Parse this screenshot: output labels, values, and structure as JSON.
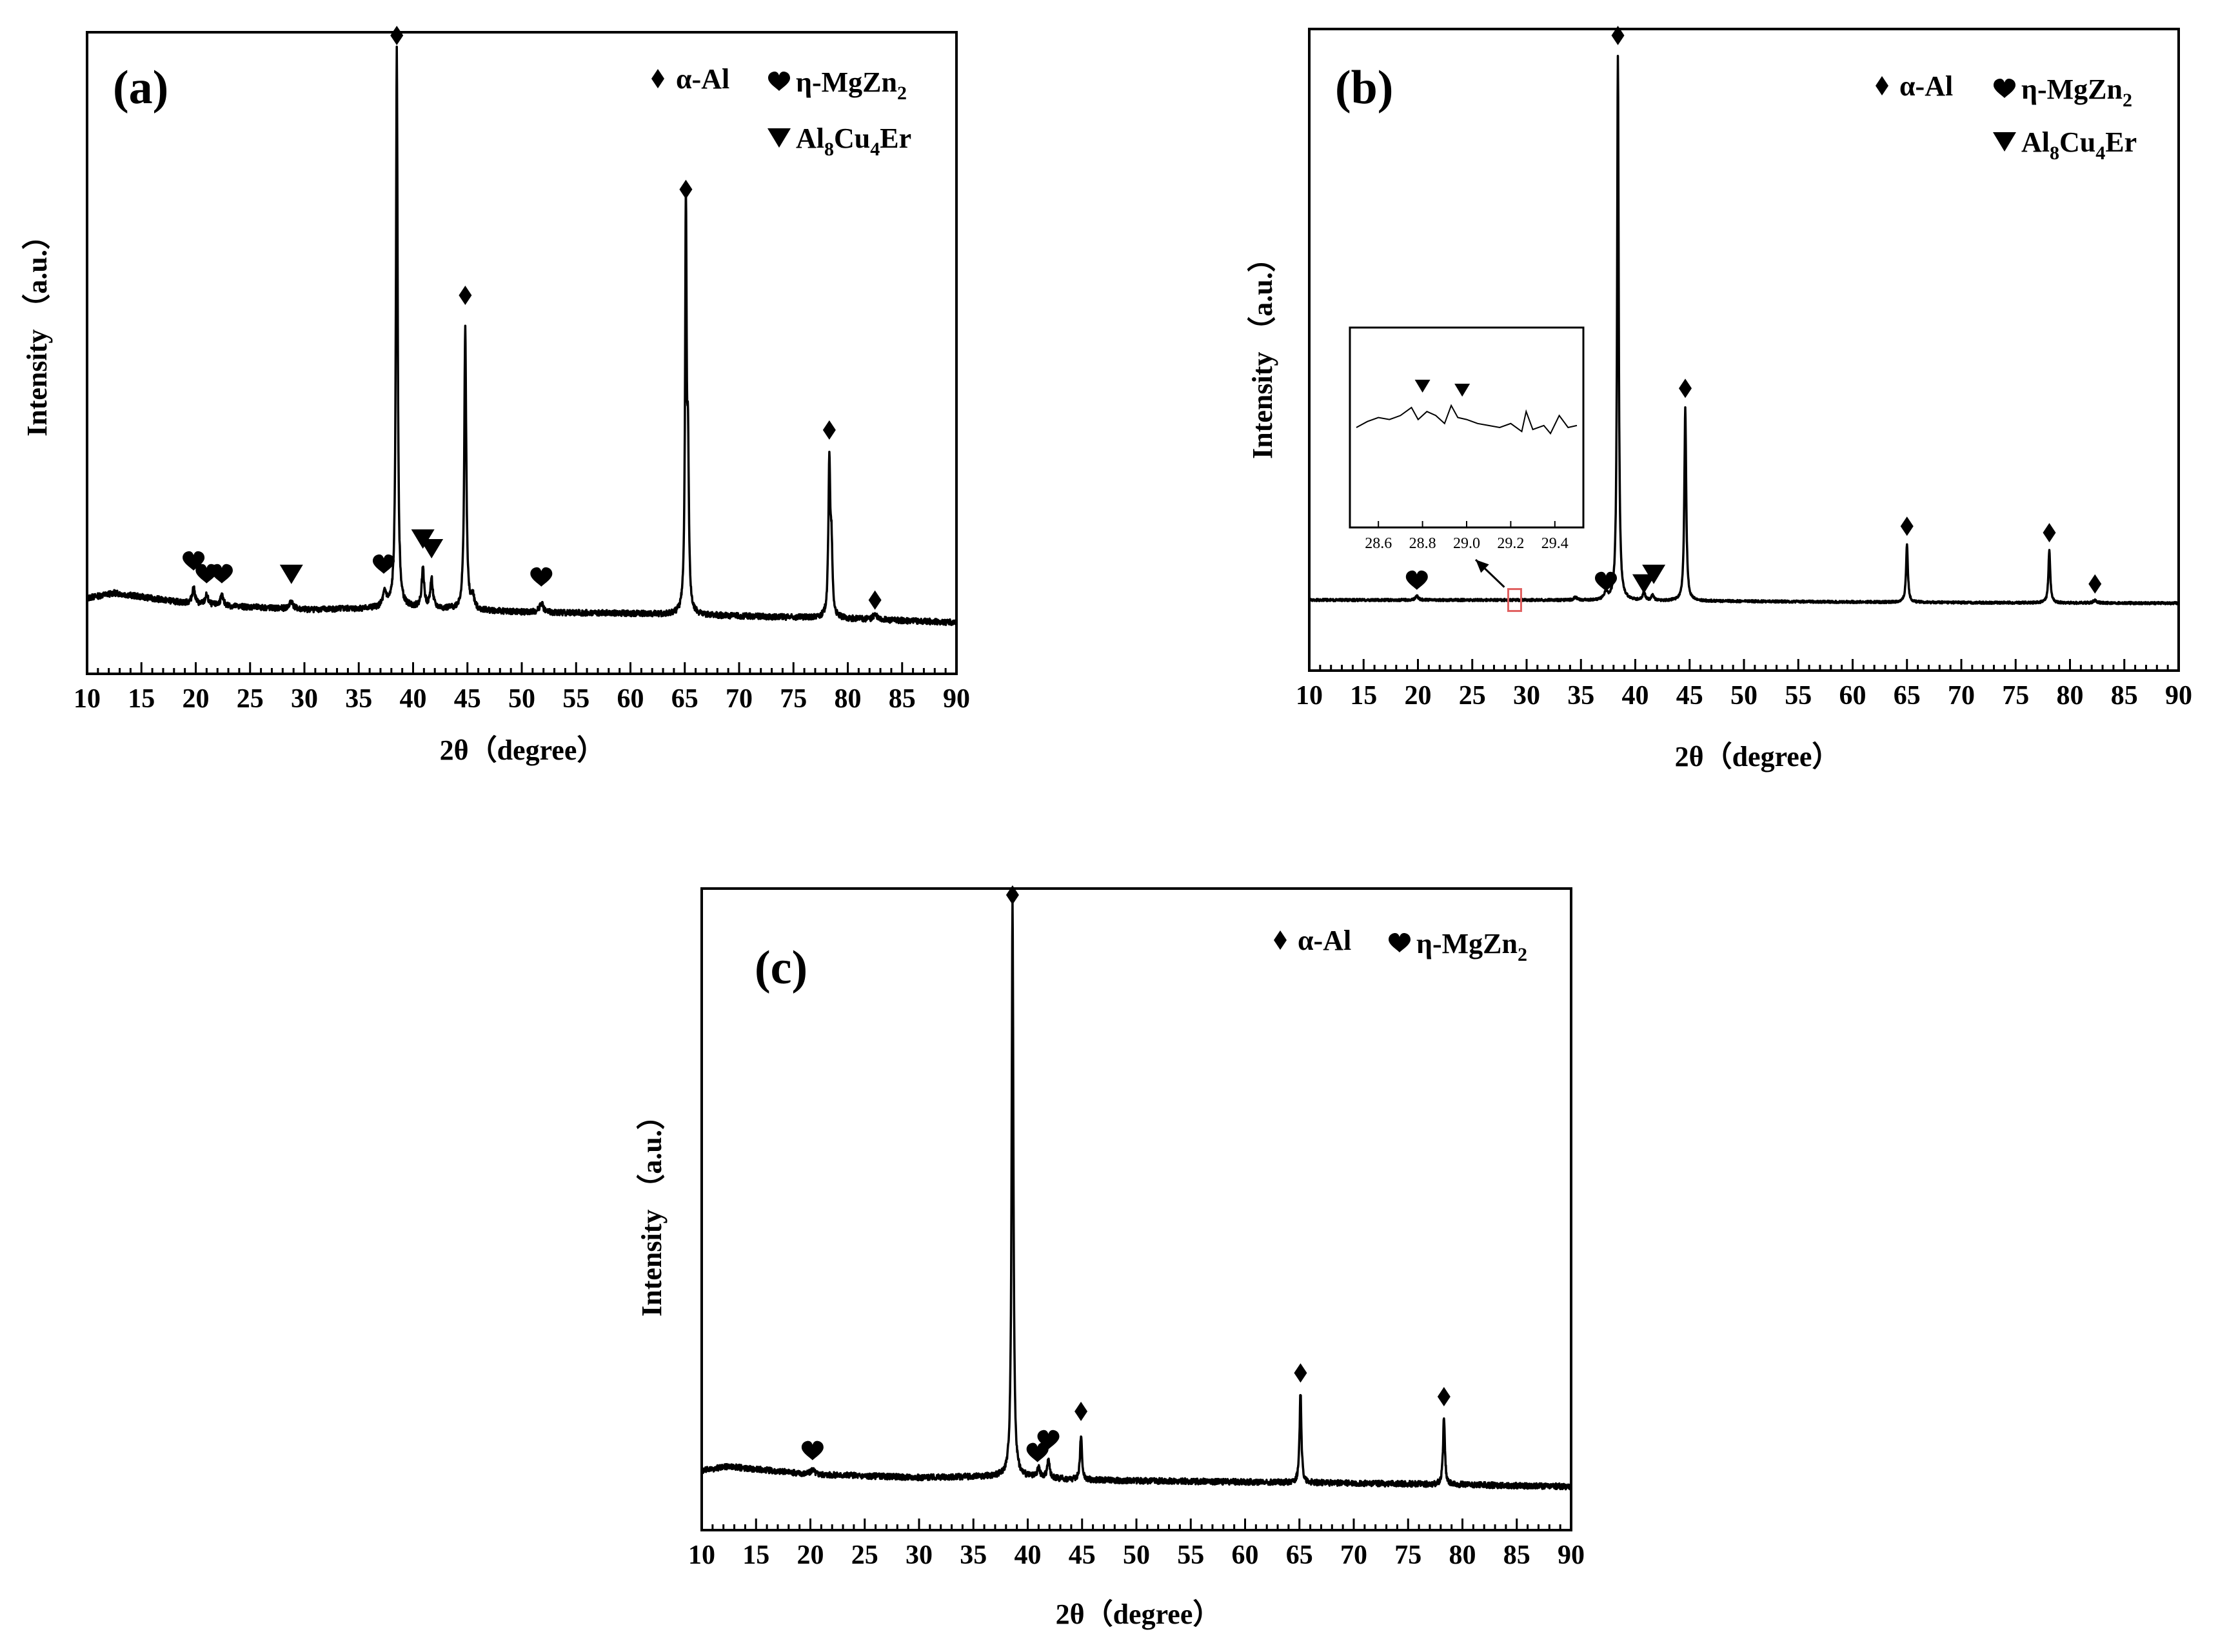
{
  "chart_data": [
    {
      "type": "line",
      "panel_label": "(a)",
      "xlabel": "2θ（degree）",
      "ylabel": "Intensity （a.u.）",
      "xlim": [
        10,
        90
      ],
      "xticks": [
        "10",
        "15",
        "20",
        "25",
        "30",
        "35",
        "40",
        "45",
        "50",
        "55",
        "60",
        "65",
        "70",
        "75",
        "80",
        "85",
        "90"
      ],
      "ylim": [
        0,
        100
      ],
      "grid": false,
      "legend": [
        {
          "symbol": "diamond",
          "label": "α-Al"
        },
        {
          "symbol": "heart",
          "label": "η-MgZn",
          "sub": "2"
        },
        {
          "symbol": "triangle-down",
          "label": "Al",
          "sub1": "8",
          "mid": "Cu",
          "sub2": "4",
          "tail": "Er"
        }
      ],
      "baseline": [
        [
          10,
          11.8
        ],
        [
          12.5,
          12.6
        ],
        [
          20,
          10.8
        ],
        [
          30,
          10.0
        ],
        [
          40,
          10.3
        ],
        [
          50,
          9.6
        ],
        [
          60,
          9.4
        ],
        [
          70,
          9.0
        ],
        [
          80,
          8.6
        ],
        [
          90,
          8.0
        ]
      ],
      "peaks": [
        {
          "x": 19.8,
          "height": 2.5,
          "width": 0.25
        },
        {
          "x": 21.0,
          "height": 1.5,
          "width": 0.25
        },
        {
          "x": 22.4,
          "height": 1.5,
          "width": 0.25
        },
        {
          "x": 28.8,
          "height": 1.2,
          "width": 0.3
        },
        {
          "x": 37.4,
          "height": 2.2,
          "width": 0.3
        },
        {
          "x": 38.5,
          "height": 87.0,
          "width": 0.14
        },
        {
          "x": 40.9,
          "height": 6.0,
          "width": 0.2
        },
        {
          "x": 41.7,
          "height": 4.5,
          "width": 0.2
        },
        {
          "x": 44.8,
          "height": 44.0,
          "width": 0.16
        },
        {
          "x": 45.5,
          "height": 2.0,
          "width": 0.2
        },
        {
          "x": 51.8,
          "height": 1.5,
          "width": 0.3
        },
        {
          "x": 65.1,
          "height": 63.0,
          "width": 0.13
        },
        {
          "x": 65.3,
          "height": 22.0,
          "width": 0.13
        },
        {
          "x": 78.3,
          "height": 24.0,
          "width": 0.15
        },
        {
          "x": 78.5,
          "height": 10.0,
          "width": 0.15
        },
        {
          "x": 82.5,
          "height": 0.8,
          "width": 0.3
        }
      ],
      "markers": [
        {
          "symbol": "heart",
          "x": 19.8,
          "y": 17.5
        },
        {
          "symbol": "heart",
          "x": 21.0,
          "y": 15.5
        },
        {
          "symbol": "heart",
          "x": 22.4,
          "y": 15.5
        },
        {
          "symbol": "triangle-down",
          "x": 28.8,
          "y": 15.5
        },
        {
          "symbol": "heart",
          "x": 37.3,
          "y": 17.0
        },
        {
          "symbol": "diamond",
          "x": 38.5,
          "y": 99.5
        },
        {
          "symbol": "triangle-down",
          "x": 40.9,
          "y": 21.0
        },
        {
          "symbol": "triangle-down",
          "x": 41.7,
          "y": 19.5
        },
        {
          "symbol": "diamond",
          "x": 44.8,
          "y": 59.0
        },
        {
          "symbol": "heart",
          "x": 51.8,
          "y": 15.0
        },
        {
          "symbol": "diamond",
          "x": 65.1,
          "y": 75.5
        },
        {
          "symbol": "diamond",
          "x": 78.3,
          "y": 38.0
        },
        {
          "symbol": "diamond",
          "x": 82.5,
          "y": 11.5
        }
      ]
    },
    {
      "type": "line",
      "panel_label": "(b)",
      "xlabel": "2θ（degree）",
      "ylabel": "Intensity （a.u.）",
      "xlim": [
        10,
        90
      ],
      "xticks": [
        "10",
        "15",
        "20",
        "25",
        "30",
        "35",
        "40",
        "45",
        "50",
        "55",
        "60",
        "65",
        "70",
        "75",
        "80",
        "85",
        "90"
      ],
      "ylim": [
        0,
        100
      ],
      "grid": false,
      "legend": [
        {
          "symbol": "diamond",
          "label": "α-Al"
        },
        {
          "symbol": "heart",
          "label": "η-MgZn",
          "sub": "2"
        },
        {
          "symbol": "triangle-down",
          "label": "Al",
          "sub1": "8",
          "mid": "Cu",
          "sub2": "4",
          "tail": "Er"
        }
      ],
      "baseline": [
        [
          10,
          11.0
        ],
        [
          30,
          11.0
        ],
        [
          50,
          10.8
        ],
        [
          70,
          10.6
        ],
        [
          90,
          10.5
        ]
      ],
      "peaks": [
        {
          "x": 19.9,
          "height": 0.6,
          "width": 0.25
        },
        {
          "x": 34.5,
          "height": 0.4,
          "width": 0.3
        },
        {
          "x": 37.3,
          "height": 1.2,
          "width": 0.25
        },
        {
          "x": 38.4,
          "height": 85.0,
          "width": 0.13
        },
        {
          "x": 40.8,
          "height": 1.2,
          "width": 0.2
        },
        {
          "x": 41.6,
          "height": 0.8,
          "width": 0.2
        },
        {
          "x": 44.6,
          "height": 30.0,
          "width": 0.15
        },
        {
          "x": 65.0,
          "height": 9.0,
          "width": 0.15
        },
        {
          "x": 78.1,
          "height": 8.2,
          "width": 0.15
        },
        {
          "x": 82.3,
          "height": 0.4,
          "width": 0.3
        }
      ],
      "markers": [
        {
          "symbol": "heart",
          "x": 19.9,
          "y": 14.0
        },
        {
          "symbol": "heart",
          "x": 37.3,
          "y": 13.8
        },
        {
          "symbol": "triangle-down",
          "x": 40.8,
          "y": 13.5
        },
        {
          "symbol": "triangle-down",
          "x": 41.7,
          "y": 15.0
        },
        {
          "symbol": "diamond",
          "x": 38.4,
          "y": 99.0
        },
        {
          "symbol": "diamond",
          "x": 44.6,
          "y": 44.0
        },
        {
          "symbol": "diamond",
          "x": 65.0,
          "y": 22.5
        },
        {
          "symbol": "diamond",
          "x": 78.1,
          "y": 21.5
        },
        {
          "symbol": "diamond",
          "x": 82.3,
          "y": 13.5
        }
      ],
      "inset": {
        "xlim": [
          28.5,
          29.5
        ],
        "xticks": [
          "28.6",
          "28.8",
          "29.0",
          "29.2",
          "29.4"
        ],
        "series": [
          [
            28.5,
            50
          ],
          [
            28.55,
            53
          ],
          [
            28.6,
            55
          ],
          [
            28.65,
            54
          ],
          [
            28.7,
            56
          ],
          [
            28.75,
            60
          ],
          [
            28.78,
            54
          ],
          [
            28.82,
            58
          ],
          [
            28.86,
            56
          ],
          [
            28.9,
            52
          ],
          [
            28.93,
            61
          ],
          [
            28.96,
            55
          ],
          [
            29.0,
            54
          ],
          [
            29.05,
            52
          ],
          [
            29.1,
            51
          ],
          [
            29.15,
            50
          ],
          [
            29.2,
            52
          ],
          [
            29.25,
            48
          ],
          [
            29.27,
            58
          ],
          [
            29.3,
            49
          ],
          [
            29.35,
            51
          ],
          [
            29.38,
            47
          ],
          [
            29.42,
            56
          ],
          [
            29.46,
            50
          ],
          [
            29.5,
            51
          ]
        ],
        "markers": [
          {
            "symbol": "triangle-down",
            "x": 28.8,
            "y": 71
          },
          {
            "symbol": "triangle-down",
            "x": 28.98,
            "y": 69
          }
        ],
        "highlight_x": 28.9
      }
    },
    {
      "type": "line",
      "panel_label": "(c)",
      "xlabel": "2θ（degree）",
      "ylabel": "Intensity （a.u.）",
      "xlim": [
        10,
        90
      ],
      "xticks": [
        "10",
        "15",
        "20",
        "25",
        "30",
        "35",
        "40",
        "45",
        "50",
        "55",
        "60",
        "65",
        "70",
        "75",
        "80",
        "85",
        "90"
      ],
      "ylim": [
        0,
        100
      ],
      "grid": false,
      "legend": [
        {
          "symbol": "diamond",
          "label": "α-Al"
        },
        {
          "symbol": "heart",
          "label": "η-MgZn",
          "sub": "2"
        }
      ],
      "baseline": [
        [
          10,
          9.3
        ],
        [
          12.5,
          9.9
        ],
        [
          20,
          8.7
        ],
        [
          30,
          8.2
        ],
        [
          38,
          8.4
        ],
        [
          45,
          7.8
        ],
        [
          60,
          7.5
        ],
        [
          75,
          7.2
        ],
        [
          90,
          6.8
        ]
      ],
      "peaks": [
        {
          "x": 20.2,
          "height": 0.8,
          "width": 0.3
        },
        {
          "x": 38.6,
          "height": 90.0,
          "width": 0.14
        },
        {
          "x": 41.0,
          "height": 1.5,
          "width": 0.2
        },
        {
          "x": 41.9,
          "height": 2.8,
          "width": 0.2
        },
        {
          "x": 44.9,
          "height": 7.0,
          "width": 0.16
        },
        {
          "x": 65.1,
          "height": 14.0,
          "width": 0.15
        },
        {
          "x": 78.3,
          "height": 10.5,
          "width": 0.15
        }
      ],
      "markers": [
        {
          "symbol": "heart",
          "x": 20.2,
          "y": 12.3
        },
        {
          "symbol": "diamond",
          "x": 38.6,
          "y": 99.0
        },
        {
          "symbol": "heart",
          "x": 40.9,
          "y": 12.0
        },
        {
          "symbol": "heart",
          "x": 41.9,
          "y": 14.0
        },
        {
          "symbol": "diamond",
          "x": 44.9,
          "y": 18.5
        },
        {
          "symbol": "diamond",
          "x": 65.1,
          "y": 24.5
        },
        {
          "symbol": "diamond",
          "x": 78.3,
          "y": 20.8
        }
      ]
    }
  ]
}
